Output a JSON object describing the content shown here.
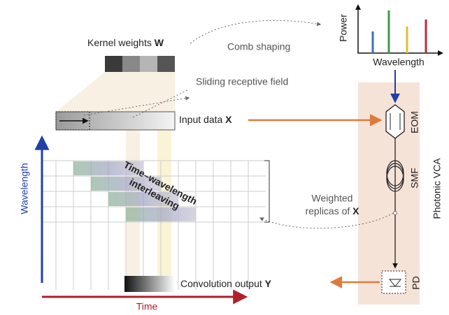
{
  "kernel": {
    "text": "Kernel weights",
    "symbol": "W"
  },
  "comb_shaping": "Comb shaping",
  "spectrum": {
    "y_label": "Power",
    "x_label": "Wavelength"
  },
  "sliding_field": "Sliding receptive field",
  "input": {
    "text": "Input data",
    "symbol": "X"
  },
  "vca": {
    "title": "Photonic VCA",
    "eom": "EOM",
    "smf": "SMF",
    "pd": "PD"
  },
  "replicas": {
    "line1": "Weighted",
    "line2": "replicas of",
    "symbol": "X"
  },
  "interleaving": {
    "line1": "Time–wavelength",
    "line2": "interleaving"
  },
  "axes": {
    "vertical": "Wavelength",
    "horizontal": "Time"
  },
  "output": {
    "text": "Convolution output",
    "symbol": "Y"
  }
}
